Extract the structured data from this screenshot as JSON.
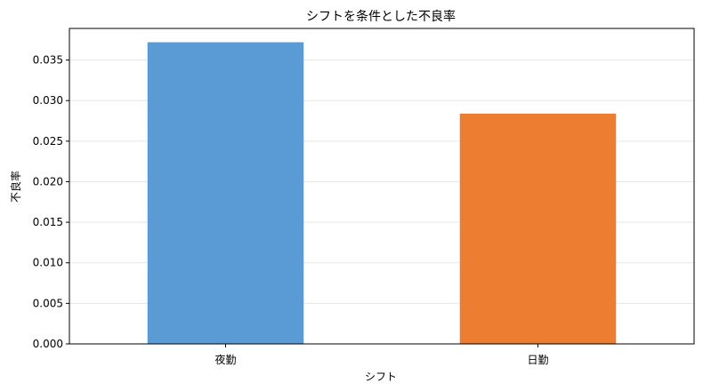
{
  "chart_data": {
    "type": "bar",
    "title": "シフトを条件とした不良率",
    "xlabel": "シフト",
    "ylabel": "不良率",
    "categories": [
      "夜勤",
      "日勤"
    ],
    "values": [
      0.0372,
      0.0284
    ],
    "colors": [
      "#5b9bd5",
      "#ed7d31"
    ],
    "ylim": [
      0,
      0.0389
    ],
    "yticks": [
      0.0,
      0.005,
      0.01,
      0.015,
      0.02,
      0.025,
      0.03,
      0.035
    ],
    "ytick_labels": [
      "0.000",
      "0.005",
      "0.010",
      "0.015",
      "0.020",
      "0.025",
      "0.030",
      "0.035"
    ],
    "grid": true,
    "legend": "none"
  }
}
